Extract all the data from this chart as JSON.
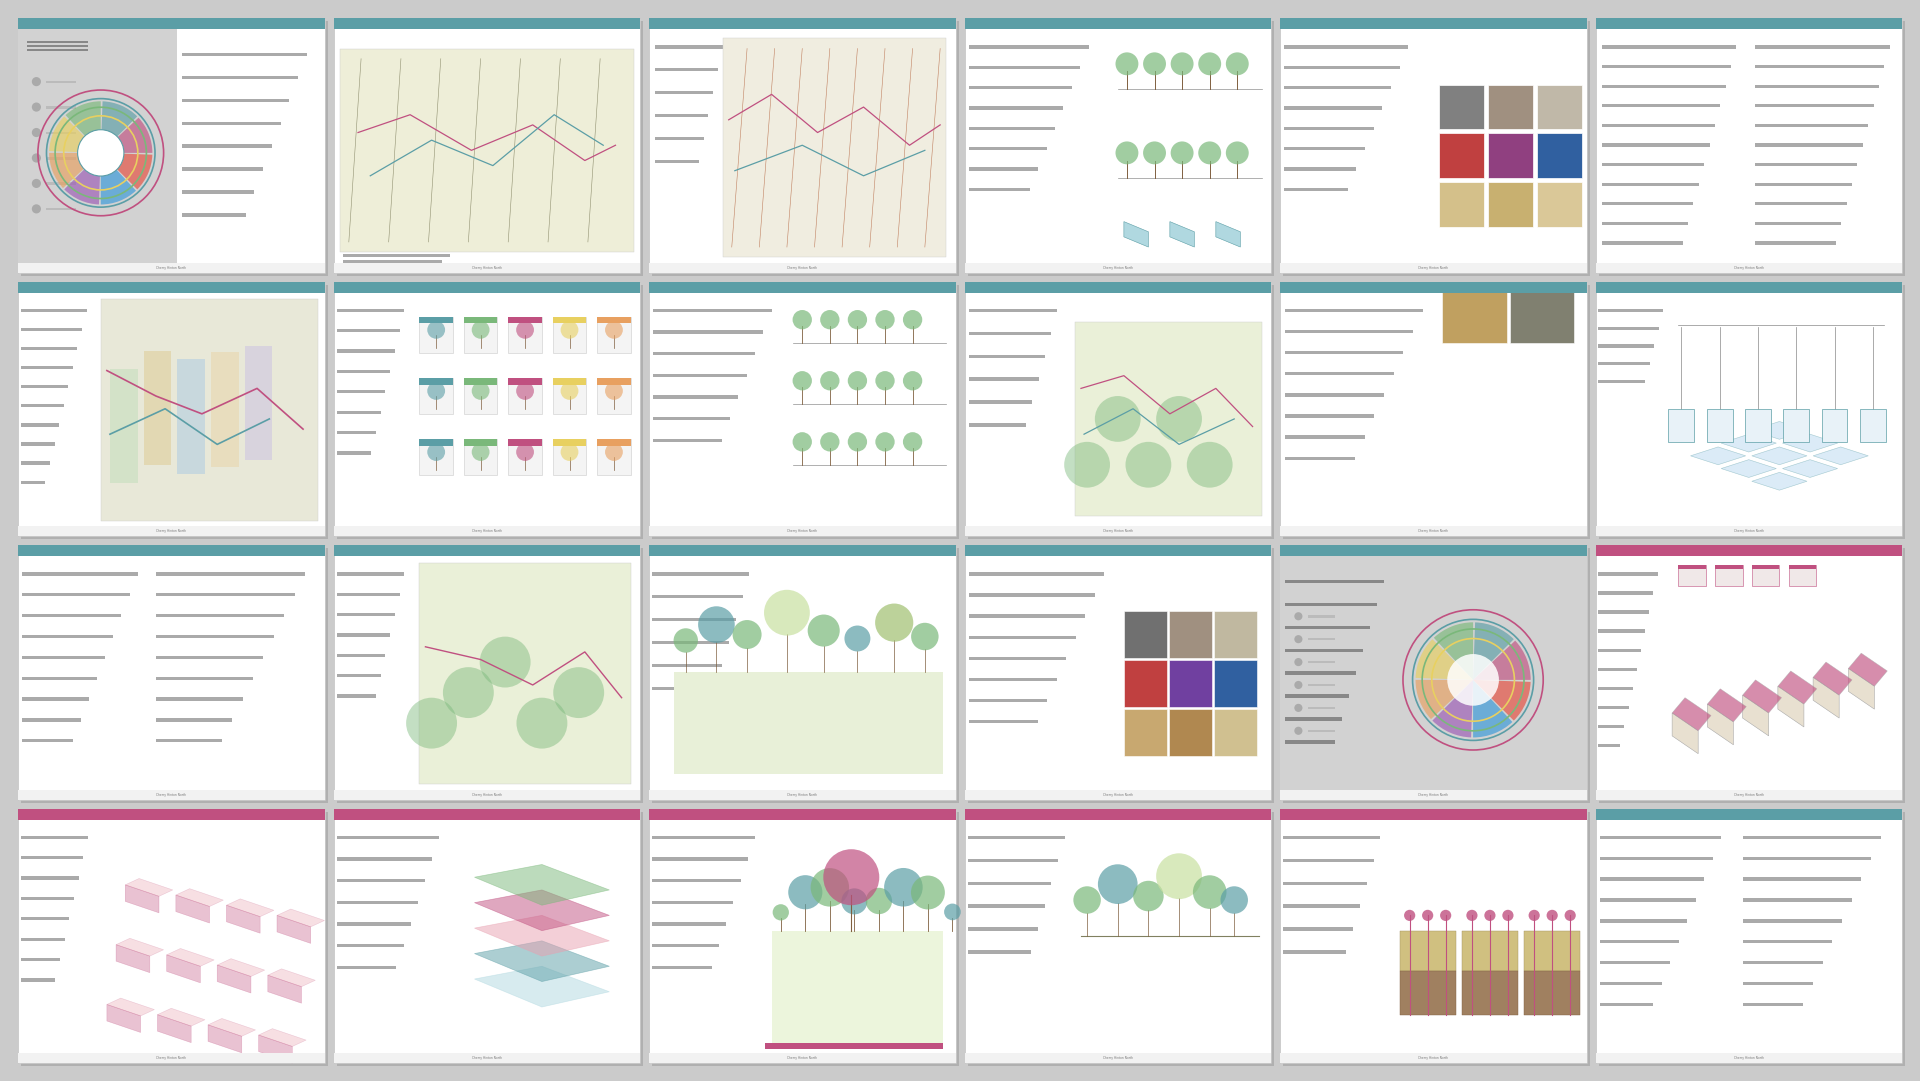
{
  "background_color": "#cbcbcb",
  "rows": 4,
  "cols": 6,
  "total_sheets": 24,
  "figure_width": 19.2,
  "figure_height": 10.81,
  "sheet_colors": [
    {
      "top_bar": "#5b9ea6",
      "accent": "#c05080",
      "type": "circular_diagram"
    },
    {
      "top_bar": "#5b9ea6",
      "accent": "#c05080",
      "type": "site_map_dark"
    },
    {
      "top_bar": "#5b9ea6",
      "accent": "#c05080",
      "type": "site_plan_lines"
    },
    {
      "top_bar": "#5b9ea6",
      "accent": "#c05080",
      "type": "pedestrian_design"
    },
    {
      "top_bar": "#5b9ea6",
      "accent": "#c05080",
      "type": "palette_materials"
    },
    {
      "top_bar": "#5b9ea6",
      "accent": "#c05080",
      "type": "text_diagrams"
    },
    {
      "top_bar": "#5b9ea6",
      "accent": "#c05080",
      "type": "site_map_color"
    },
    {
      "top_bar": "#5b9ea6",
      "accent": "#c05080",
      "type": "planting_framework"
    },
    {
      "top_bar": "#5b9ea6",
      "accent": "#c05080",
      "type": "street_sections"
    },
    {
      "top_bar": "#5b9ea6",
      "accent": "#c05080",
      "type": "biodiversity"
    },
    {
      "top_bar": "#5b9ea6",
      "accent": "#c05080",
      "type": "photos_diagrams"
    },
    {
      "top_bar": "#5b9ea6",
      "accent": "#c05080",
      "type": "isometric_grid"
    },
    {
      "top_bar": "#5b9ea6",
      "accent": "#c05080",
      "type": "text_site"
    },
    {
      "top_bar": "#5b9ea6",
      "accent": "#c05080",
      "type": "transport_nodes"
    },
    {
      "top_bar": "#5b9ea6",
      "accent": "#c05080",
      "type": "landscape_axo"
    },
    {
      "top_bar": "#5b9ea6",
      "accent": "#c05080",
      "type": "photos_grid"
    },
    {
      "top_bar": "#5b9ea6",
      "accent": "#c05080",
      "type": "circular_gray"
    },
    {
      "top_bar": "#c05080",
      "accent": "#c05080",
      "type": "housing_isometric"
    },
    {
      "top_bar": "#c05080",
      "accent": "#c05080",
      "type": "systems_lattice"
    },
    {
      "top_bar": "#c05080",
      "accent": "#c05080",
      "type": "exploded_axo"
    },
    {
      "top_bar": "#c05080",
      "accent": "#c05080",
      "type": "adaptive_diagram"
    },
    {
      "top_bar": "#c05080",
      "accent": "#c05080",
      "type": "planting_diagram"
    },
    {
      "top_bar": "#c05080",
      "accent": "#c05080",
      "type": "land_sections"
    },
    {
      "top_bar": "#5b9ea6",
      "accent": "#c05080",
      "type": "text_final"
    }
  ]
}
